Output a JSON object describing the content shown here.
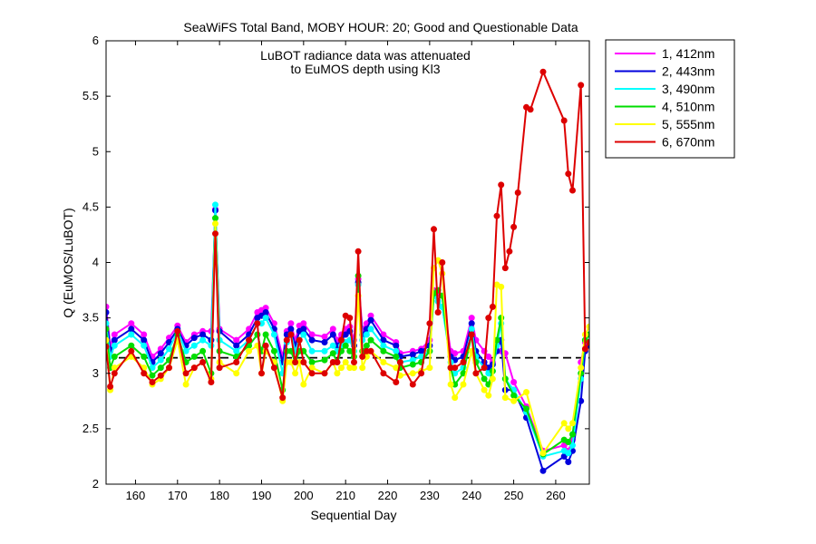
{
  "chart_data": {
    "type": "line",
    "title": "SeaWiFS Total Band,  MOBY HOUR: 20;  Good and Questionable Data",
    "annotation": [
      "LuBOT radiance data was attenuated",
      "to EuMOS depth using Kl3"
    ],
    "xlabel": "Sequential Day",
    "ylabel": "Q (EuMOS/LuBOT)",
    "xlim": [
      153,
      268
    ],
    "ylim": [
      2,
      6
    ],
    "xticks": [
      160,
      170,
      180,
      190,
      200,
      210,
      220,
      230,
      240,
      250,
      260
    ],
    "yticks": [
      2,
      2.5,
      3,
      3.5,
      4,
      4.5,
      5,
      5.5,
      6
    ],
    "reference_line": {
      "y": 3.14,
      "style": "dashed",
      "color": "#000000"
    },
    "grid": false,
    "legend": {
      "placement": "outside-top-right"
    },
    "series": [
      {
        "name": "1, 412nm",
        "color": "#ff00ff",
        "x": [
          153,
          154,
          155,
          159,
          162,
          164,
          166,
          168,
          170,
          172,
          174,
          176,
          178,
          179,
          180,
          184,
          187,
          189,
          190,
          191,
          193,
          195,
          196,
          197,
          198,
          199,
          200,
          202,
          205,
          207,
          208,
          209,
          210,
          211,
          212,
          213,
          214,
          215,
          216,
          219,
          222,
          223,
          226,
          228,
          230,
          231,
          232,
          233,
          235,
          236,
          238,
          240,
          241,
          243,
          244,
          245,
          246,
          247,
          248,
          250,
          253,
          257,
          262,
          263,
          264,
          266,
          267,
          268
        ],
        "y": [
          3.6,
          3.25,
          3.35,
          3.45,
          3.35,
          3.15,
          3.22,
          3.32,
          3.43,
          3.28,
          3.35,
          3.38,
          3.38,
          4.48,
          3.4,
          3.3,
          3.4,
          3.55,
          3.57,
          3.59,
          3.45,
          3.15,
          3.38,
          3.45,
          3.3,
          3.43,
          3.45,
          3.35,
          3.33,
          3.4,
          3.3,
          3.35,
          3.4,
          3.42,
          3.3,
          3.85,
          3.4,
          3.45,
          3.52,
          3.35,
          3.28,
          3.18,
          3.2,
          3.22,
          3.3,
          3.75,
          3.72,
          3.7,
          3.2,
          3.18,
          3.2,
          3.5,
          3.3,
          3.2,
          3.15,
          3.1,
          3.2,
          3.2,
          3.18,
          2.92,
          2.7,
          2.3,
          2.35,
          2.3,
          2.4,
          3.1,
          3.28,
          3.28
        ]
      },
      {
        "name": "2, 443nm",
        "color": "#0000dd",
        "x": [
          153,
          154,
          155,
          159,
          162,
          164,
          166,
          168,
          170,
          172,
          174,
          176,
          178,
          179,
          180,
          184,
          187,
          189,
          190,
          191,
          193,
          195,
          196,
          197,
          198,
          199,
          200,
          202,
          205,
          207,
          208,
          209,
          210,
          211,
          212,
          213,
          214,
          215,
          216,
          219,
          222,
          223,
          226,
          228,
          230,
          231,
          232,
          233,
          235,
          236,
          238,
          240,
          241,
          243,
          244,
          245,
          246,
          247,
          248,
          250,
          253,
          257,
          262,
          263,
          264,
          266,
          267,
          268
        ],
        "y": [
          3.55,
          3.2,
          3.3,
          3.4,
          3.3,
          3.1,
          3.18,
          3.28,
          3.4,
          3.25,
          3.32,
          3.35,
          3.3,
          4.47,
          3.38,
          3.25,
          3.35,
          3.5,
          3.52,
          3.55,
          3.4,
          3.1,
          3.35,
          3.4,
          3.25,
          3.38,
          3.4,
          3.3,
          3.28,
          3.35,
          3.25,
          3.3,
          3.35,
          3.38,
          3.25,
          3.82,
          3.35,
          3.4,
          3.48,
          3.3,
          3.25,
          3.15,
          3.17,
          3.2,
          3.25,
          3.72,
          3.65,
          3.6,
          3.15,
          3.12,
          3.15,
          3.45,
          3.2,
          3.1,
          3.05,
          3.08,
          3.2,
          3.3,
          2.85,
          2.85,
          2.6,
          2.12,
          2.25,
          2.2,
          2.3,
          2.75,
          3.2,
          3.25
        ]
      },
      {
        "name": "3, 490nm",
        "color": "#00ffff",
        "x": [
          153,
          154,
          155,
          159,
          162,
          164,
          166,
          168,
          170,
          172,
          174,
          176,
          178,
          179,
          180,
          184,
          187,
          189,
          190,
          191,
          193,
          195,
          196,
          197,
          198,
          199,
          200,
          202,
          205,
          207,
          208,
          209,
          210,
          211,
          212,
          213,
          214,
          215,
          216,
          219,
          222,
          223,
          226,
          228,
          230,
          231,
          232,
          233,
          235,
          236,
          238,
          240,
          241,
          243,
          244,
          245,
          246,
          247,
          248,
          250,
          253,
          257,
          262,
          263,
          264,
          266,
          267,
          268
        ],
        "y": [
          3.45,
          3.15,
          3.25,
          3.35,
          3.25,
          3.05,
          3.12,
          3.22,
          3.38,
          3.2,
          3.25,
          3.3,
          3.25,
          4.52,
          3.3,
          3.2,
          3.3,
          3.45,
          3.45,
          3.5,
          3.35,
          3.0,
          3.28,
          3.35,
          3.2,
          3.3,
          3.35,
          3.2,
          3.2,
          3.25,
          3.2,
          3.25,
          3.28,
          3.3,
          3.2,
          3.8,
          3.3,
          3.35,
          3.4,
          3.25,
          3.2,
          3.1,
          3.12,
          3.15,
          3.2,
          3.7,
          3.65,
          3.6,
          3.1,
          3.0,
          3.05,
          3.4,
          3.15,
          3.05,
          3.0,
          3.02,
          3.25,
          3.45,
          2.95,
          2.85,
          2.65,
          2.25,
          2.3,
          2.28,
          2.35,
          2.95,
          3.3,
          3.35
        ]
      },
      {
        "name": "4, 510nm",
        "color": "#00dd00",
        "x": [
          153,
          154,
          155,
          159,
          162,
          164,
          166,
          168,
          170,
          172,
          174,
          176,
          178,
          179,
          180,
          184,
          187,
          189,
          190,
          191,
          193,
          195,
          196,
          197,
          198,
          199,
          200,
          202,
          205,
          207,
          208,
          209,
          210,
          211,
          212,
          213,
          214,
          215,
          216,
          219,
          222,
          223,
          226,
          228,
          230,
          231,
          232,
          233,
          235,
          236,
          238,
          240,
          241,
          243,
          244,
          245,
          246,
          247,
          248,
          250,
          253,
          257,
          262,
          263,
          264,
          266,
          267,
          268
        ],
        "y": [
          3.4,
          3.05,
          3.15,
          3.25,
          3.15,
          2.98,
          3.05,
          3.12,
          3.35,
          3.1,
          3.15,
          3.2,
          3.0,
          4.4,
          3.2,
          3.15,
          3.25,
          3.35,
          3.2,
          3.35,
          3.2,
          2.85,
          3.2,
          3.2,
          3.1,
          3.2,
          3.2,
          3.1,
          3.12,
          3.18,
          3.1,
          3.2,
          3.25,
          3.2,
          3.15,
          3.88,
          3.2,
          3.25,
          3.3,
          3.2,
          3.15,
          3.05,
          3.08,
          3.1,
          3.2,
          3.72,
          3.75,
          3.7,
          3.05,
          2.9,
          3.0,
          3.35,
          3.1,
          2.95,
          2.9,
          3.02,
          3.3,
          3.5,
          2.95,
          2.8,
          2.68,
          2.27,
          2.4,
          2.38,
          2.45,
          3.0,
          3.3,
          3.35
        ]
      },
      {
        "name": "5, 555nm",
        "color": "#ffff00",
        "x": [
          153,
          154,
          155,
          159,
          162,
          164,
          166,
          168,
          170,
          172,
          174,
          176,
          178,
          179,
          180,
          184,
          187,
          189,
          190,
          191,
          193,
          195,
          196,
          197,
          198,
          199,
          200,
          202,
          205,
          207,
          208,
          209,
          210,
          211,
          212,
          213,
          214,
          215,
          216,
          219,
          222,
          223,
          226,
          228,
          230,
          231,
          232,
          233,
          235,
          236,
          238,
          240,
          241,
          243,
          244,
          245,
          246,
          247,
          248,
          250,
          253,
          257,
          262,
          263,
          264,
          266,
          267,
          268
        ],
        "y": [
          3.3,
          2.85,
          3.05,
          3.15,
          3.05,
          2.9,
          2.95,
          3.05,
          3.3,
          2.9,
          3.05,
          3.1,
          2.95,
          4.35,
          3.1,
          3.0,
          3.2,
          3.25,
          3.0,
          3.2,
          3.1,
          2.75,
          3.1,
          3.1,
          3.0,
          3.1,
          2.9,
          3.05,
          3.0,
          3.1,
          3.0,
          3.05,
          3.1,
          3.05,
          3.05,
          3.7,
          3.05,
          3.15,
          3.2,
          3.1,
          3.05,
          2.98,
          3.0,
          3.02,
          3.05,
          3.95,
          4.02,
          3.9,
          2.9,
          2.78,
          2.9,
          3.2,
          3.0,
          2.85,
          2.8,
          2.95,
          3.8,
          3.78,
          2.78,
          2.75,
          2.83,
          2.28,
          2.55,
          2.5,
          2.55,
          3.05,
          3.35,
          3.42
        ]
      },
      {
        "name": "6, 670nm",
        "color": "#dd0000",
        "x": [
          153,
          154,
          155,
          159,
          162,
          164,
          166,
          168,
          170,
          172,
          174,
          176,
          178,
          179,
          180,
          184,
          187,
          189,
          190,
          191,
          193,
          195,
          196,
          197,
          198,
          199,
          200,
          202,
          205,
          207,
          208,
          209,
          210,
          211,
          212,
          213,
          214,
          215,
          216,
          219,
          222,
          223,
          226,
          228,
          230,
          231,
          232,
          233,
          235,
          236,
          238,
          240,
          241,
          243,
          244,
          245,
          246,
          247,
          248,
          249,
          250,
          251,
          253,
          254,
          257,
          262,
          263,
          264,
          266,
          267,
          268
        ],
        "y": [
          3.24,
          2.88,
          3.0,
          3.2,
          3.0,
          2.92,
          2.98,
          3.05,
          3.38,
          3.0,
          3.05,
          3.1,
          2.92,
          4.26,
          3.05,
          3.1,
          3.3,
          3.45,
          3.0,
          3.25,
          3.05,
          2.78,
          3.3,
          3.35,
          3.1,
          3.3,
          3.1,
          3.0,
          3.0,
          3.1,
          3.1,
          3.3,
          3.52,
          3.5,
          3.1,
          4.1,
          3.15,
          3.2,
          3.2,
          3.0,
          2.92,
          3.1,
          2.9,
          3.0,
          3.45,
          4.3,
          3.55,
          4.0,
          3.05,
          3.05,
          3.1,
          3.35,
          3.0,
          3.05,
          3.5,
          3.6,
          4.42,
          4.7,
          3.95,
          4.1,
          4.32,
          4.63,
          5.4,
          5.38,
          5.72,
          5.28,
          4.8,
          4.65,
          5.6,
          3.22,
          3.28
        ]
      }
    ]
  }
}
